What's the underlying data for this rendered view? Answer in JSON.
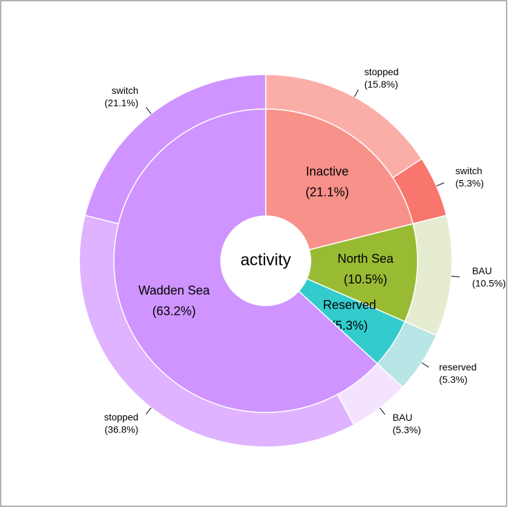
{
  "chart_data": {
    "type": "sunburst",
    "center_label": "activity",
    "inner": {
      "categories": [
        "Inactive",
        "North Sea",
        "Reserved",
        "Wadden Sea"
      ],
      "values": [
        21.1,
        10.5,
        5.3,
        63.2
      ],
      "value_labels": [
        "(21.1%)",
        "(10.5%)",
        "(5.3%)",
        "(63.2%)"
      ],
      "colors": [
        "#f8918a",
        "#99bb33",
        "#33cccc",
        "#cf94ff"
      ]
    },
    "outer": {
      "categories": [
        "stopped",
        "switch",
        "BAU",
        "reserved",
        "BAU",
        "stopped",
        "switch"
      ],
      "values": [
        15.8,
        5.3,
        10.5,
        5.3,
        5.3,
        36.8,
        21.1
      ],
      "value_labels": [
        "(15.8%)",
        "(5.3%)",
        "(10.5%)",
        "(5.3%)",
        "(5.3%)",
        "(36.8%)",
        "(21.1%)"
      ],
      "colors": [
        "#fbaea8",
        "#f8766d",
        "#e5ecd0",
        "#b8e5e5",
        "#f4e3ff",
        "#dfb3ff",
        "#cf94ff"
      ]
    }
  }
}
